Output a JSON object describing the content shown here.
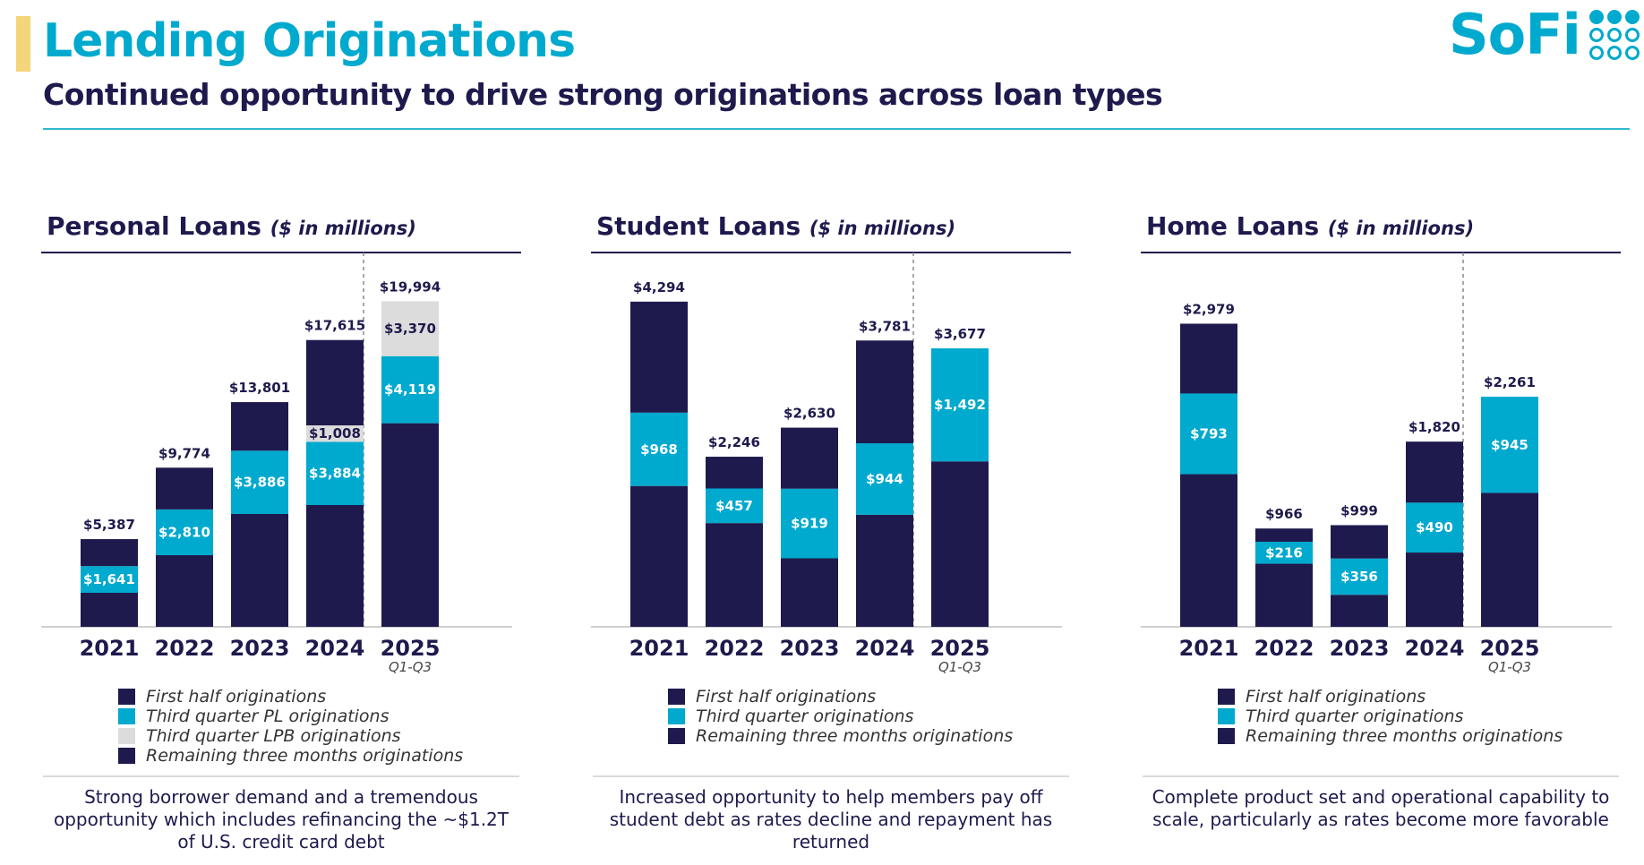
{
  "header": {
    "title": "Lending Originations",
    "subtitle": "Continued opportunity to drive strong originations across loan types",
    "logo_text": "SoFi"
  },
  "colors": {
    "dark": "#1e1a4d",
    "teal": "#00a9ce",
    "light": "#dcdcdc"
  },
  "chart_data": [
    {
      "type": "bar",
      "stacked": true,
      "title": "Personal Loans",
      "unit": "($ in millions)",
      "categories": [
        "2021",
        "2022",
        "2023",
        "2024",
        "2025"
      ],
      "sublabels": [
        "",
        "",
        "",
        "",
        "Q1-Q3"
      ],
      "totals": [
        "$5,387",
        "$9,774",
        "$13,801",
        "$17,615",
        "$19,994"
      ],
      "ylim": [
        0,
        22000
      ],
      "series": [
        {
          "name": "First half originations",
          "color": "#1e1a4d",
          "values": [
            2090,
            4400,
            6930,
            7480,
            12505
          ],
          "labels": [
            "",
            "",
            "",
            "",
            ""
          ]
        },
        {
          "name": "Third quarter PL originations",
          "color": "#00a9ce",
          "values": [
            1641,
            2810,
            3886,
            3884,
            4119
          ],
          "labels": [
            "$1,641",
            "$2,810",
            "$3,886",
            "$3,884",
            "$4,119"
          ]
        },
        {
          "name": "Third quarter LPB originations",
          "color": "#dcdcdc",
          "values": [
            0,
            0,
            0,
            1008,
            3370
          ],
          "labels": [
            "",
            "",
            "",
            "$1,008",
            "$3,370"
          ]
        },
        {
          "name": "Remaining three months originations",
          "color": "#1e1a4d",
          "values": [
            1656,
            2564,
            2985,
            5243,
            0
          ],
          "labels": [
            "",
            "",
            "",
            "",
            ""
          ]
        }
      ],
      "legend": [
        "First half originations",
        "Third quarter PL originations",
        "Third quarter LPB originations",
        "Remaining three months originations"
      ],
      "caption": "Strong borrower demand and a tremendous opportunity which includes refinancing the ~$1.2T of U.S. credit card debt"
    },
    {
      "type": "bar",
      "stacked": true,
      "title": "Student Loans",
      "unit": "($ in millions)",
      "categories": [
        "2021",
        "2022",
        "2023",
        "2024",
        "2025"
      ],
      "sublabels": [
        "",
        "",
        "",
        "",
        "Q1-Q3"
      ],
      "totals": [
        "$4,294",
        "$2,246",
        "$2,630",
        "$3,781",
        "$3,677"
      ],
      "ylim": [
        0,
        4730
      ],
      "series": [
        {
          "name": "First half originations",
          "color": "#1e1a4d",
          "values": [
            1860,
            1370,
            905,
            1480,
            2185
          ],
          "labels": [
            "",
            "",
            "",
            "",
            ""
          ]
        },
        {
          "name": "Third quarter originations",
          "color": "#00a9ce",
          "values": [
            968,
            457,
            919,
            944,
            1492
          ],
          "labels": [
            "$968",
            "$457",
            "$919",
            "$944",
            "$1,492"
          ]
        },
        {
          "name": "Remaining three months originations",
          "color": "#1e1a4d",
          "values": [
            1466,
            419,
            806,
            1357,
            0
          ],
          "labels": [
            "",
            "",
            "",
            "",
            ""
          ]
        }
      ],
      "legend": [
        "First half originations",
        "Third quarter originations",
        "Remaining three months originations"
      ],
      "caption": "Increased opportunity to help members pay off student debt as rates decline and repayment has returned"
    },
    {
      "type": "bar",
      "stacked": true,
      "title": "Home Loans",
      "unit": "($ in millions)",
      "categories": [
        "2021",
        "2022",
        "2023",
        "2024",
        "2025"
      ],
      "sublabels": [
        "",
        "",
        "",
        "",
        "Q1-Q3"
      ],
      "totals": [
        "$2,979",
        "$966",
        "$999",
        "$1,820",
        "$2,261"
      ],
      "ylim": [
        0,
        3520
      ],
      "series": [
        {
          "name": "First half originations",
          "color": "#1e1a4d",
          "values": [
            1500,
            620,
            315,
            730,
            1316
          ],
          "labels": [
            "",
            "",
            "",
            "",
            ""
          ]
        },
        {
          "name": "Third quarter originations",
          "color": "#00a9ce",
          "values": [
            793,
            216,
            356,
            490,
            945
          ],
          "labels": [
            "$793",
            "$216",
            "$356",
            "$490",
            "$945"
          ]
        },
        {
          "name": "Remaining three months originations",
          "color": "#1e1a4d",
          "values": [
            686,
            130,
            328,
            600,
            0
          ],
          "labels": [
            "",
            "",
            "",
            "",
            ""
          ]
        }
      ],
      "legend": [
        "First half originations",
        "Third quarter originations",
        "Remaining three months originations"
      ],
      "caption": "Complete product set and operational capability to scale, particularly as rates become more favorable"
    }
  ]
}
